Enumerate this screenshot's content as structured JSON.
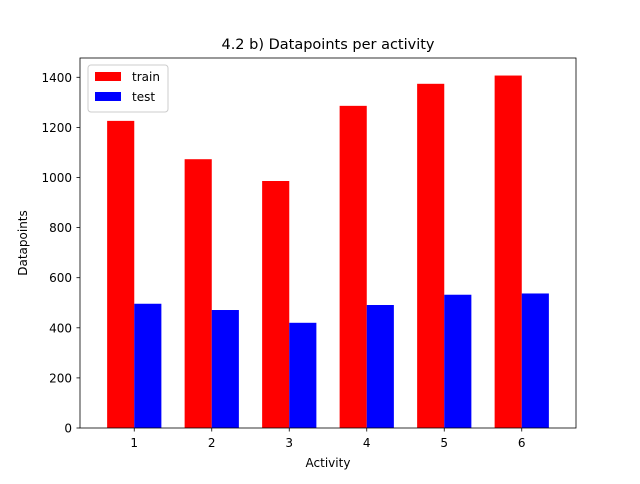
{
  "chart_data": {
    "type": "bar",
    "title": "4.2 b) Datapoints per activity",
    "xlabel": "Activity",
    "ylabel": "Datapoints",
    "categories": [
      "1",
      "2",
      "3",
      "4",
      "5",
      "6"
    ],
    "series": [
      {
        "name": "train",
        "color": "#ff0000",
        "values": [
          1226,
          1073,
          986,
          1286,
          1374,
          1407
        ]
      },
      {
        "name": "test",
        "color": "#0000ff",
        "values": [
          496,
          471,
          420,
          491,
          532,
          537
        ]
      }
    ],
    "ylim": [
      0,
      1477
    ],
    "yticks": [
      0,
      200,
      400,
      600,
      800,
      1000,
      1200,
      1400
    ],
    "grid": false,
    "legend_position": "top-left"
  }
}
